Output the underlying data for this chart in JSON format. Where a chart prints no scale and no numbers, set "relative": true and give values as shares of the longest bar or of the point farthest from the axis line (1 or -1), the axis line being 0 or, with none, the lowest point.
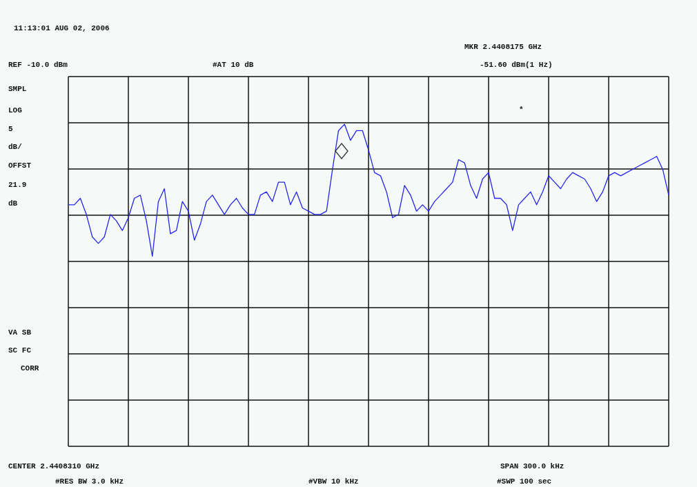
{
  "chart_data": {
    "type": "line",
    "relative": true,
    "grid": true,
    "marker": "none",
    "line_style": "solid",
    "annotations": [
      "11:13:01 AUG 02, 2006",
      "MKR 2.4408175 GHz",
      "REF -10.0 dBm",
      "#AT 10 dB",
      "-51.60 dBm(1 Hz)",
      "SMPL",
      "LOG",
      "5",
      "dB/",
      "OFFST",
      "21.9",
      "dB",
      "VA SB",
      "SC FC",
      "CORR",
      "CENTER 2.4408310 GHz",
      "SPAN 300.0 kHz",
      "#RES BW 3.0 kHz",
      "#VBW 10 kHz",
      "#SWP 100 sec",
      "*"
    ],
    "categories": [
      null,
      null,
      null,
      null,
      null,
      null,
      null,
      null,
      null,
      null,
      null,
      null,
      null,
      null,
      null,
      null,
      null,
      null,
      null,
      null,
      null,
      null,
      null,
      null,
      null,
      null,
      null,
      null,
      null,
      null,
      null,
      null,
      null,
      null,
      null,
      null,
      null,
      null,
      null,
      null,
      null,
      null,
      null,
      null,
      null,
      null,
      null,
      null,
      null,
      null,
      null,
      null,
      null,
      null,
      null,
      null,
      null,
      null,
      null,
      null,
      null,
      null,
      null,
      null,
      null,
      null,
      null,
      null,
      null,
      null,
      null,
      null,
      null,
      null,
      null,
      null,
      null,
      null,
      null,
      null,
      null,
      null,
      null,
      null,
      null,
      null,
      null,
      null,
      null,
      null,
      null,
      null,
      null,
      null,
      null,
      null,
      null,
      null,
      null,
      null,
      null
    ],
    "series": [
      {
        "color": "#2424f0",
        "values": [
          0.75,
          0.75,
          0.77,
          0.72,
          0.65,
          0.63,
          0.65,
          0.72,
          0.7,
          0.67,
          0.71,
          0.77,
          0.78,
          0.7,
          0.59,
          0.76,
          0.8,
          0.66,
          0.67,
          0.76,
          0.73,
          0.64,
          0.69,
          0.76,
          0.78,
          0.75,
          0.72,
          0.75,
          0.77,
          0.74,
          0.72,
          0.72,
          0.78,
          0.79,
          0.76,
          0.82,
          0.82,
          0.75,
          0.79,
          0.74,
          0.73,
          0.72,
          0.72,
          0.73,
          0.86,
          0.98,
          1,
          0.95,
          0.98,
          0.98,
          0.92,
          0.85,
          0.84,
          0.79,
          0.71,
          0.72,
          0.81,
          0.78,
          0.73,
          0.75,
          0.73,
          0.76,
          0.78,
          0.8,
          0.82,
          0.89,
          0.88,
          0.81,
          0.77,
          0.83,
          0.85,
          0.77,
          0.77,
          0.75,
          0.67,
          0.75,
          0.77,
          0.79,
          0.75,
          0.79,
          0.84,
          0.82,
          0.8,
          0.83,
          0.85,
          0.84,
          0.83,
          0.8,
          0.76,
          0.79,
          0.84,
          0.85,
          0.84,
          0.85,
          0.86,
          0.87,
          0.88,
          0.89,
          0.9,
          0.86,
          0.78
        ]
      }
    ]
  }
}
